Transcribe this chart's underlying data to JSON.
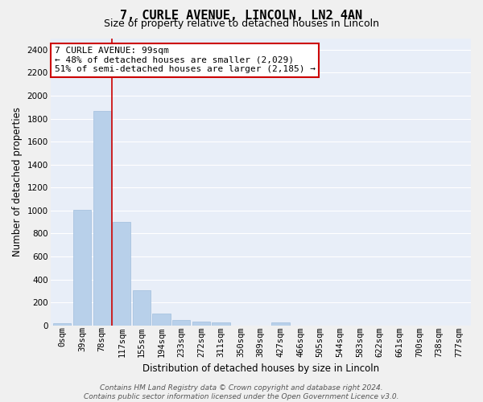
{
  "title": "7, CURLE AVENUE, LINCOLN, LN2 4AN",
  "subtitle": "Size of property relative to detached houses in Lincoln",
  "xlabel": "Distribution of detached houses by size in Lincoln",
  "ylabel": "Number of detached properties",
  "bar_labels": [
    "0sqm",
    "39sqm",
    "78sqm",
    "117sqm",
    "155sqm",
    "194sqm",
    "233sqm",
    "272sqm",
    "311sqm",
    "350sqm",
    "389sqm",
    "427sqm",
    "466sqm",
    "505sqm",
    "544sqm",
    "583sqm",
    "622sqm",
    "661sqm",
    "700sqm",
    "738sqm",
    "777sqm"
  ],
  "bar_values": [
    20,
    1005,
    1870,
    900,
    305,
    105,
    48,
    30,
    25,
    0,
    0,
    25,
    0,
    0,
    0,
    0,
    0,
    0,
    0,
    0,
    0
  ],
  "bar_color": "#b8d0ea",
  "bar_edgecolor": "#a0bedd",
  "ylim": [
    0,
    2500
  ],
  "yticks": [
    0,
    200,
    400,
    600,
    800,
    1000,
    1200,
    1400,
    1600,
    1800,
    2000,
    2200,
    2400
  ],
  "vline_x": 2.5,
  "vline_color": "#cc0000",
  "annotation_text": "7 CURLE AVENUE: 99sqm\n← 48% of detached houses are smaller (2,029)\n51% of semi-detached houses are larger (2,185) →",
  "footer_text": "Contains HM Land Registry data © Crown copyright and database right 2024.\nContains public sector information licensed under the Open Government Licence v3.0.",
  "fig_bg_color": "#f0f0f0",
  "plot_bg_color": "#e8eef8",
  "grid_color": "#ffffff",
  "title_fontsize": 11,
  "subtitle_fontsize": 9,
  "xlabel_fontsize": 8.5,
  "ylabel_fontsize": 8.5,
  "tick_fontsize": 7.5,
  "annot_fontsize": 8,
  "footer_fontsize": 6.5
}
